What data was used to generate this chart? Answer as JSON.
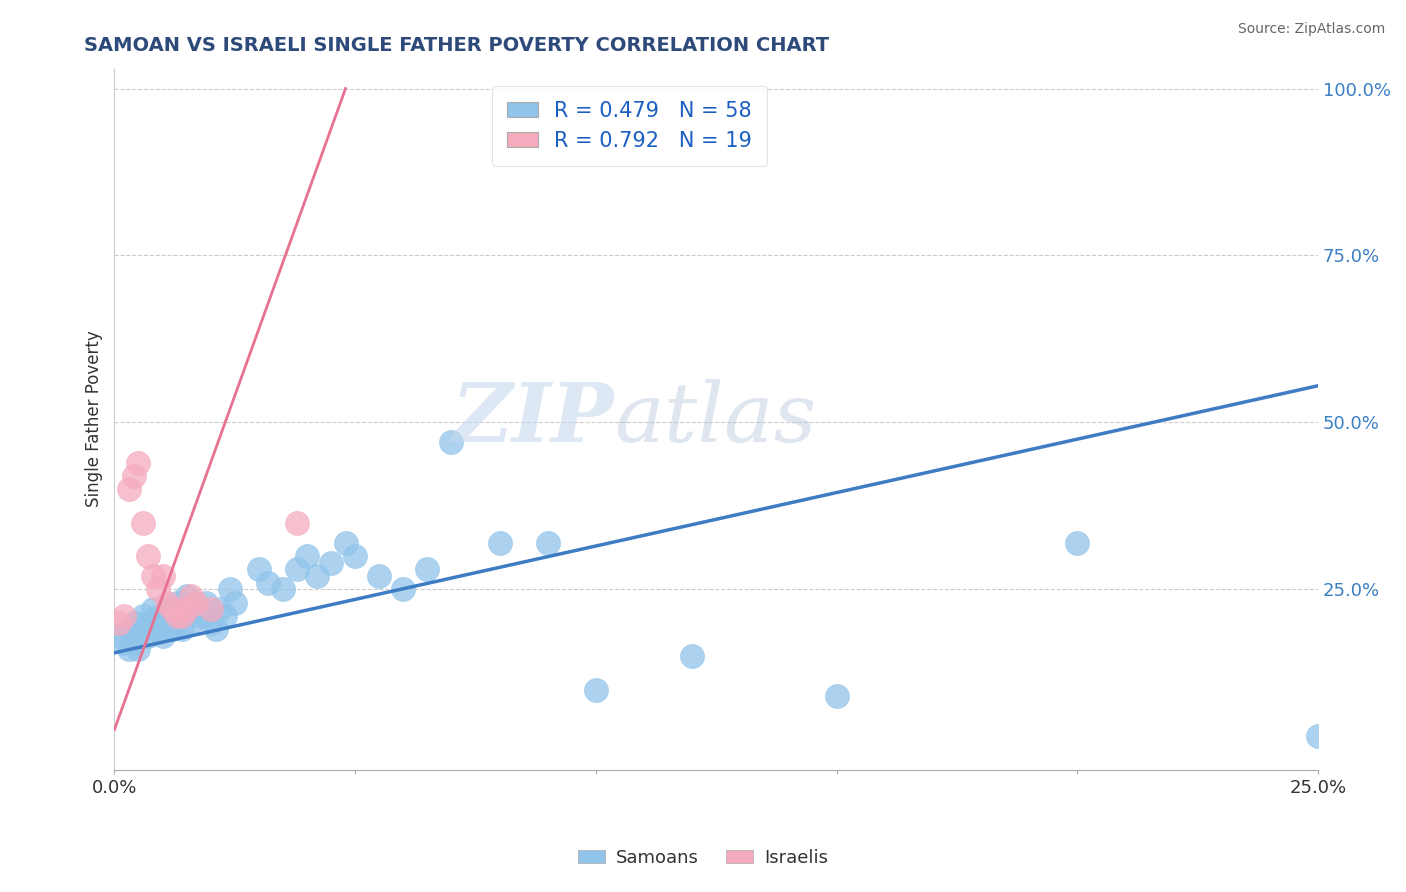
{
  "title": "SAMOAN VS ISRAELI SINGLE FATHER POVERTY CORRELATION CHART",
  "source": "Source: ZipAtlas.com",
  "ylabel": "Single Father Poverty",
  "xlim": [
    0.0,
    0.25
  ],
  "ylim": [
    -0.02,
    1.03
  ],
  "samoan_color": "#90C4EA",
  "israeli_color": "#F5ABBE",
  "samoan_line_color": "#3E7CC4",
  "israeli_line_color": "#E87090",
  "samoan_R": 0.479,
  "samoan_N": 58,
  "israeli_R": 0.792,
  "israeli_N": 19,
  "title_color": "#2E4A7A",
  "source_color": "#666666",
  "legend_color": "#1B5FC1",
  "samoan_points_x": [
    0.001,
    0.002,
    0.003,
    0.003,
    0.004,
    0.004,
    0.005,
    0.005,
    0.006,
    0.006,
    0.007,
    0.007,
    0.008,
    0.008,
    0.009,
    0.009,
    0.01,
    0.01,
    0.011,
    0.011,
    0.012,
    0.012,
    0.013,
    0.013,
    0.014,
    0.014,
    0.015,
    0.015,
    0.016,
    0.017,
    0.018,
    0.019,
    0.02,
    0.021,
    0.022,
    0.023,
    0.024,
    0.025,
    0.03,
    0.032,
    0.035,
    0.038,
    0.04,
    0.042,
    0.045,
    0.048,
    0.05,
    0.055,
    0.06,
    0.065,
    0.07,
    0.08,
    0.09,
    0.1,
    0.12,
    0.15,
    0.2,
    0.25
  ],
  "samoan_points_y": [
    0.18,
    0.17,
    0.19,
    0.16,
    0.2,
    0.17,
    0.18,
    0.16,
    0.19,
    0.21,
    0.2,
    0.18,
    0.22,
    0.19,
    0.21,
    0.2,
    0.19,
    0.18,
    0.22,
    0.2,
    0.21,
    0.19,
    0.23,
    0.2,
    0.22,
    0.19,
    0.24,
    0.21,
    0.2,
    0.22,
    0.21,
    0.23,
    0.2,
    0.19,
    0.22,
    0.21,
    0.25,
    0.23,
    0.28,
    0.26,
    0.25,
    0.28,
    0.3,
    0.27,
    0.29,
    0.32,
    0.3,
    0.27,
    0.25,
    0.28,
    0.47,
    0.32,
    0.32,
    0.1,
    0.15,
    0.09,
    0.32,
    0.03
  ],
  "israeli_points_x": [
    0.001,
    0.002,
    0.003,
    0.004,
    0.005,
    0.006,
    0.007,
    0.008,
    0.009,
    0.01,
    0.011,
    0.012,
    0.013,
    0.014,
    0.015,
    0.016,
    0.017,
    0.02,
    0.038
  ],
  "israeli_points_y": [
    0.2,
    0.21,
    0.4,
    0.42,
    0.44,
    0.35,
    0.3,
    0.27,
    0.25,
    0.27,
    0.23,
    0.22,
    0.21,
    0.21,
    0.22,
    0.24,
    0.23,
    0.22,
    0.35
  ],
  "blue_line_x0": 0.0,
  "blue_line_y0": 0.155,
  "blue_line_x1": 0.25,
  "blue_line_y1": 0.555,
  "pink_line_x0": 0.0,
  "pink_line_y0": 0.04,
  "pink_line_x1": 0.048,
  "pink_line_y1": 1.0
}
